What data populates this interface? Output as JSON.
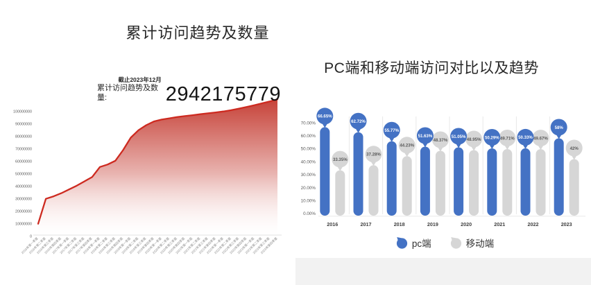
{
  "chart_data": [
    {
      "id": "cumulative-visits",
      "type": "area",
      "title": "累计访问趋势及数量",
      "annotations": {
        "date_note": "截止2023年12月",
        "label": "累计访问趋势及数量:",
        "value": "2942175779"
      },
      "categories": [
        "2016年第一季度",
        "2016年第二季度",
        "2016年第三季度",
        "2016年第四季度",
        "2017年第一季度",
        "2017年第二季度",
        "2017年第三季度",
        "2017年第四季度",
        "2018年第一季度",
        "2018年第二季度",
        "2018年第三季度",
        "2018年第四季度",
        "2019年第一季度",
        "2019年第二季度",
        "2019年第三季度",
        "2019年第四季度",
        "2020年第一季度",
        "2020年第二季度",
        "2020年第三季度",
        "2020年第四季度",
        "2021年第一季度",
        "2021年第二季度",
        "2021年第三季度",
        "2021年第四季度",
        "2022年第一季度",
        "2022年第二季度",
        "2022年第三季度",
        "2022年第四季度",
        "2023年第一季度",
        "2023年第二季度",
        "2023年第三季度",
        "2023年第四季度"
      ],
      "values": [
        10000000,
        30000000,
        32000000,
        34500000,
        37500000,
        40500000,
        44000000,
        47500000,
        55500000,
        57500000,
        60500000,
        69000000,
        79000000,
        85000000,
        89000000,
        92000000,
        93500000,
        94500000,
        95500000,
        96300000,
        97000000,
        97800000,
        98500000,
        99200000,
        100000000,
        101000000,
        102300000,
        103600000,
        105000000,
        106500000,
        108000000,
        109800000
      ],
      "yticks": [
        "0",
        "10000000",
        "20000000",
        "30000000",
        "40000000",
        "50000000",
        "60000000",
        "70000000",
        "80000000",
        "90000000",
        "100000000"
      ],
      "ylim": [
        0,
        100000000
      ],
      "xlabel": "",
      "ylabel": "",
      "grid": false,
      "line_color": "#cd2a20",
      "fill_top_color": "#c43a30",
      "fill_bottom_color": "#ffffff",
      "axis_text_color": "#8a8a8a",
      "axis_line_color": "#d9d9d9"
    },
    {
      "id": "pc-vs-mobile",
      "type": "bar",
      "title": "PC端和移动端访问对比以及趋势",
      "categories": [
        "2016",
        "2017",
        "2018",
        "2019",
        "2020",
        "2021",
        "2022",
        "2023"
      ],
      "series": [
        {
          "name": "pc端",
          "color": "#4472c4",
          "values": [
            66.65,
            62.72,
            55.77,
            51.63,
            51.05,
            50.29,
            50.33,
            58
          ],
          "labels": [
            "66.65%",
            "62.72%",
            "55.77%",
            "51.63%",
            "51.05%",
            "50.29%",
            "50.33%",
            "58%"
          ],
          "label_text_color": "#ffffff"
        },
        {
          "name": "移动端",
          "color": "#d6d6d6",
          "values": [
            33.35,
            37.28,
            44.23,
            48.37,
            48.95,
            49.71,
            49.67,
            42
          ],
          "labels": [
            "33.35%",
            "37.28%",
            "44.23%",
            "48.37%",
            "48.95%",
            "49.71%",
            "49.67%",
            "42%"
          ],
          "label_text_color": "#595959"
        }
      ],
      "yticks": [
        "0.00%",
        "10.00%",
        "20.00%",
        "30.00%",
        "40.00%",
        "50.00%",
        "60.00%",
        "70.00%"
      ],
      "ylim": [
        0,
        70
      ],
      "grid": false,
      "legend_position": "bottom",
      "separator_color": "#e8e8e8",
      "axis_text_color": "#595959",
      "year_label_color": "#404040"
    }
  ]
}
